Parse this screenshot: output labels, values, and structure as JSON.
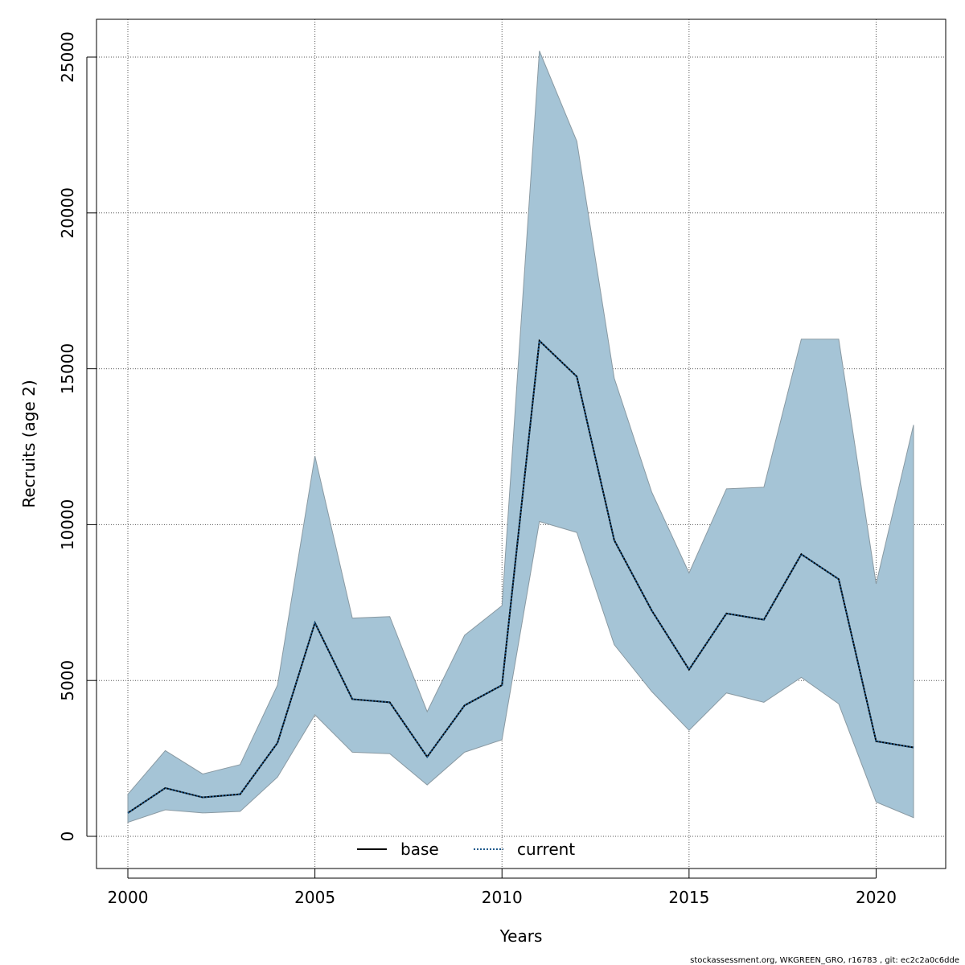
{
  "chart_data": {
    "type": "line",
    "xlabel": "Years",
    "ylabel": "Recruits (age 2)",
    "xlim": [
      2000,
      2021
    ],
    "ylim": [
      0,
      25000
    ],
    "x_ticks": [
      "2000",
      "2005",
      "2010",
      "2015",
      "2020"
    ],
    "y_ticks": [
      "0",
      "5000",
      "10000",
      "15000",
      "20000",
      "25000"
    ],
    "grid": true,
    "legend_position": "bottom-center",
    "x": [
      2000,
      2001,
      2002,
      2003,
      2004,
      2005,
      2006,
      2007,
      2008,
      2009,
      2010,
      2011,
      2012,
      2013,
      2014,
      2015,
      2016,
      2017,
      2018,
      2019,
      2020,
      2021
    ],
    "series": [
      {
        "name": "base",
        "line_style": "solid",
        "color": "#000000",
        "values": [
          750,
          1550,
          1250,
          1350,
          3000,
          6850,
          4400,
          4300,
          2550,
          4200,
          4850,
          15900,
          14750,
          9500,
          7250,
          5350,
          7150,
          6950,
          9050,
          8250,
          3050,
          2850
        ]
      },
      {
        "name": "current",
        "line_style": "dotted",
        "color": "#1f5a8c",
        "values": [
          750,
          1550,
          1250,
          1350,
          3000,
          6850,
          4400,
          4300,
          2550,
          4200,
          4850,
          15900,
          14750,
          9500,
          7250,
          5350,
          7150,
          6950,
          9050,
          8250,
          3050,
          2850
        ]
      }
    ],
    "band": {
      "color": "#a5c4d6",
      "lower": [
        450,
        850,
        750,
        800,
        1900,
        3900,
        2700,
        2650,
        1650,
        2700,
        3100,
        10100,
        9750,
        6150,
        4650,
        3400,
        4600,
        4300,
        5100,
        4250,
        1100,
        600
      ],
      "upper": [
        1350,
        2750,
        2000,
        2300,
        4850,
        12200,
        7000,
        7050,
        4000,
        6450,
        7400,
        25200,
        22300,
        14700,
        11050,
        8450,
        11150,
        11200,
        15950,
        15950,
        8100,
        13200
      ]
    }
  },
  "footnote": "stockassessment.org, WKGREEN_GRO, r16783 , git: ec2c2a0c6dde"
}
